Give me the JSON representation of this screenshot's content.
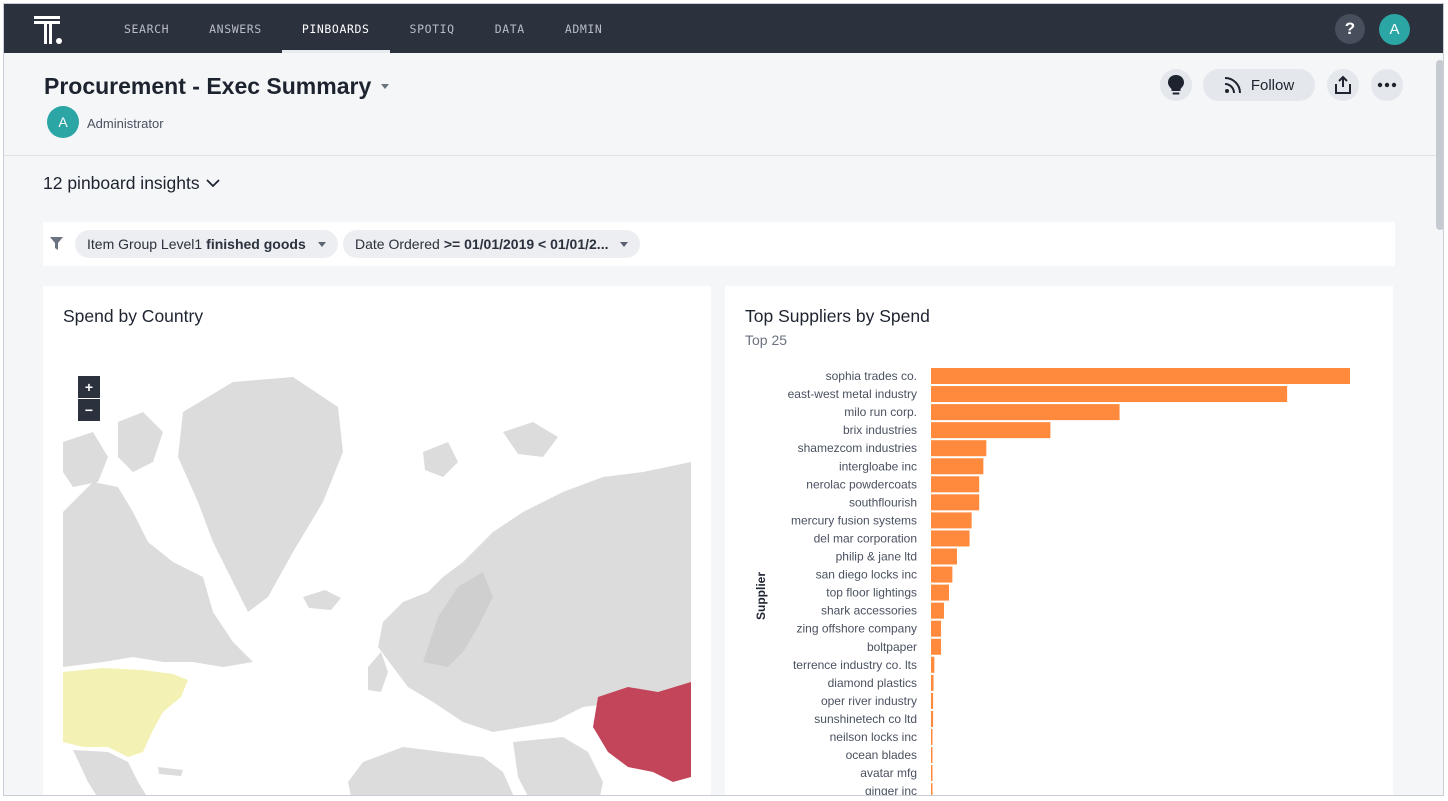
{
  "nav": {
    "items": [
      {
        "label": "SEARCH",
        "active": false
      },
      {
        "label": "ANSWERS",
        "active": false
      },
      {
        "label": "PINBOARDS",
        "active": true
      },
      {
        "label": "SPOTIQ",
        "active": false
      },
      {
        "label": "DATA",
        "active": false
      },
      {
        "label": "ADMIN",
        "active": false
      }
    ],
    "help_label": "?",
    "avatar_initial": "A"
  },
  "header": {
    "title": "Procurement - Exec Summary",
    "author_initial": "A",
    "author_name": "Administrator",
    "follow_label": "Follow"
  },
  "insights": {
    "label": "12 pinboard insights"
  },
  "filters": [
    {
      "field": "Item Group Level1",
      "value": "finished goods"
    },
    {
      "field": "Date Ordered",
      "value": ">= 01/01/2019 < 01/01/2..."
    }
  ],
  "map_card": {
    "title": "Spend by Country",
    "zoom_in": "+",
    "zoom_out": "−"
  },
  "chart_data": {
    "type": "bar",
    "orientation": "horizontal",
    "title": "Top Suppliers by Spend",
    "subtitle": "Top 25",
    "ylabel": "Supplier",
    "color": "#ff8a3d",
    "categories": [
      "sophia trades co.",
      "east-west metal industry",
      "milo run corp.",
      "brix industries",
      "shamezcom industries",
      "intergloabe inc",
      "nerolac powdercoats",
      "southflourish",
      "mercury fusion systems",
      "del mar corporation",
      "philip & jane ltd",
      "san diego locks inc",
      "top floor lightings",
      "shark accessories",
      "zing offshore company",
      "boltpaper",
      "terrence industry co. lts",
      "diamond plastics",
      "oper river industry",
      "sunshinetech co ltd",
      "neilson locks inc",
      "ocean blades",
      "avatar mfg",
      "ginger inc"
    ],
    "values": [
      100,
      85,
      45,
      28.5,
      13.2,
      12.5,
      11.5,
      11.5,
      9.7,
      9.2,
      6.2,
      5.1,
      4.3,
      3.1,
      2.4,
      2.4,
      0.8,
      0.6,
      0.5,
      0.5,
      0.3,
      0.3,
      0.3,
      0.2
    ],
    "xlim": [
      0,
      100
    ]
  },
  "colors": {
    "nav_bg": "#2b313d",
    "accent_teal": "#2ca5a5",
    "map_land": "#dcdcdc",
    "map_china": "#c2455a",
    "map_usa": "#f3f2b4"
  }
}
